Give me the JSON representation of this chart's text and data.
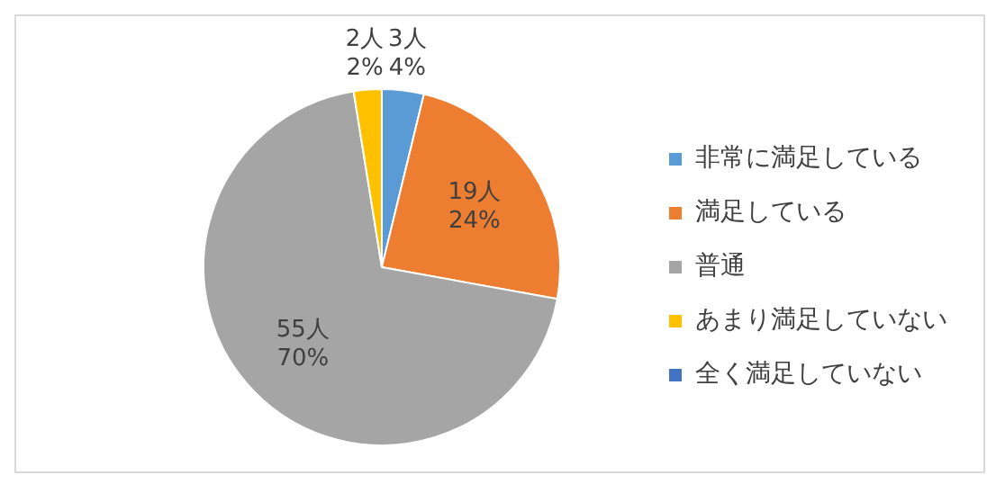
{
  "chart_data": {
    "type": "pie",
    "categories": [
      "非常に満足している",
      "満足している",
      "普通",
      "あまり満足していない",
      "全く満足していない"
    ],
    "values": [
      3,
      19,
      55,
      2,
      0
    ],
    "colors": [
      "#5b9bd5",
      "#ed7d31",
      "#a5a5a5",
      "#ffc000",
      "#4472c4"
    ],
    "value_labels": [
      "3人\n4%",
      "19人\n24%",
      "55人\n70%",
      "2人\n2%",
      null
    ],
    "legend": "right"
  }
}
